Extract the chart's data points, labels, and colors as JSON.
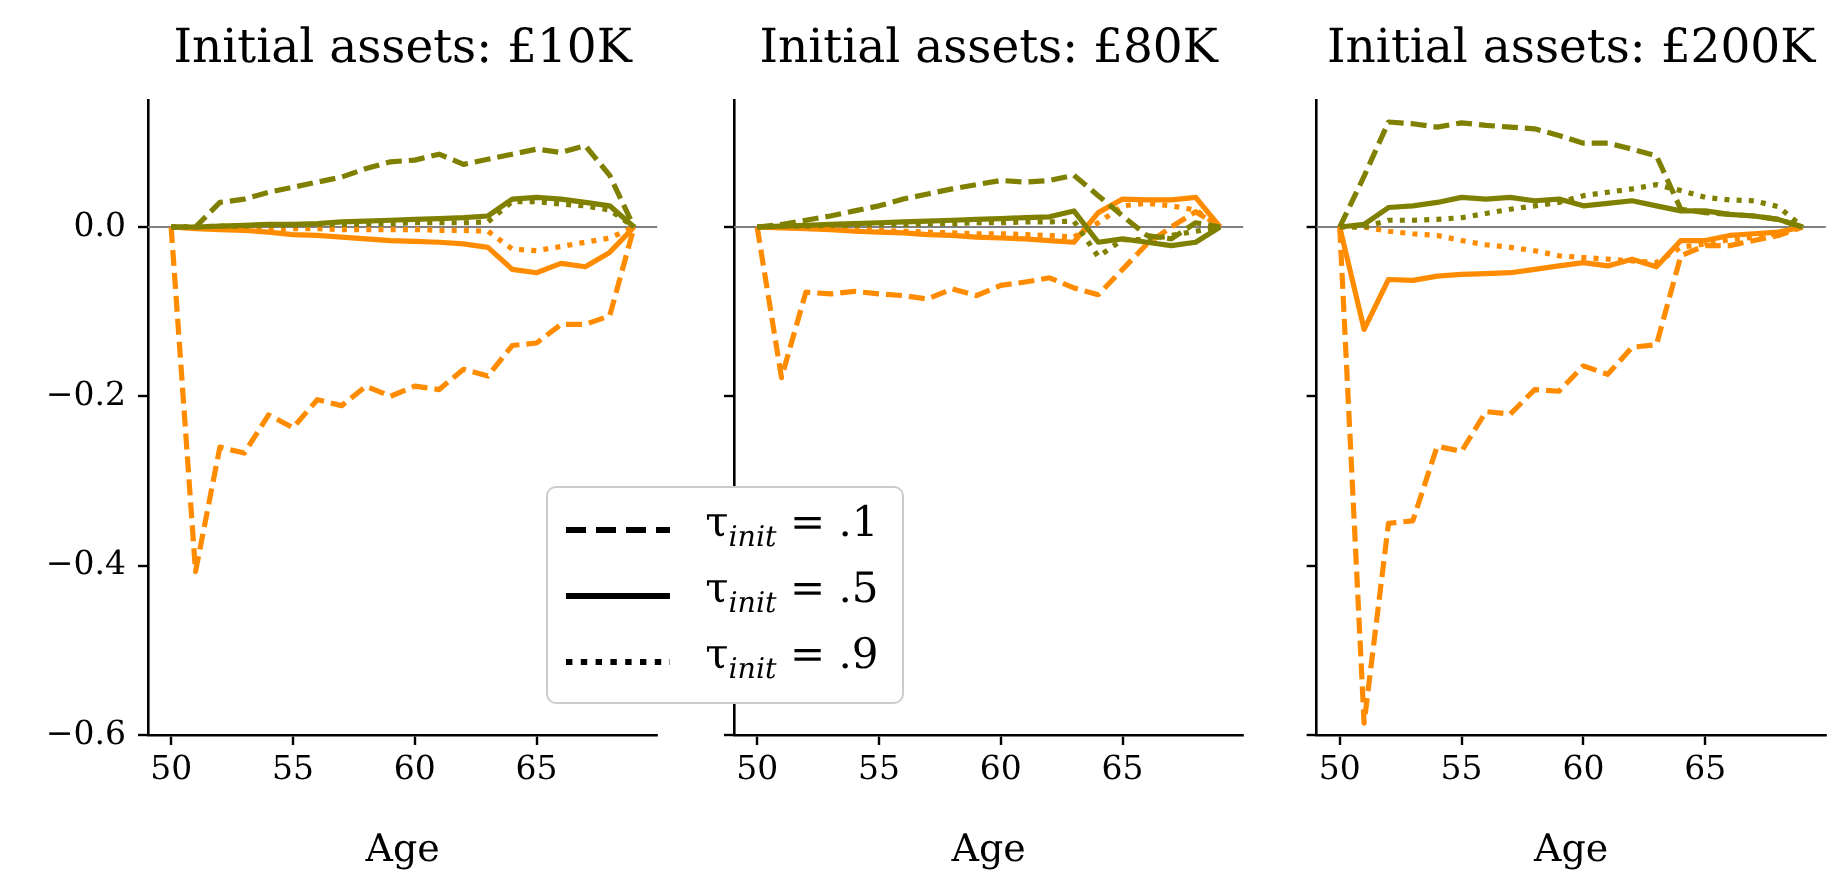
{
  "chart_data": [
    {
      "type": "line",
      "title": "Initial assets: £10K",
      "xlabel": "Age",
      "x": [
        50,
        51,
        52,
        53,
        54,
        55,
        56,
        57,
        58,
        59,
        60,
        61,
        62,
        63,
        64,
        65,
        66,
        67,
        68,
        69
      ],
      "xlim": [
        49.05,
        69.95
      ],
      "xticks": [
        50,
        55,
        60,
        65
      ],
      "ylim": [
        -0.6,
        0.15
      ],
      "yticks": [
        {
          "value": -0.6,
          "label": "−0.6"
        },
        {
          "value": -0.4,
          "label": "−0.4"
        },
        {
          "value": -0.2,
          "label": "−0.2"
        },
        {
          "value": 0,
          "label": "0.0"
        }
      ],
      "marker": "none",
      "ref_lines": [
        {
          "axis": "y",
          "value": 0,
          "color": "#808080"
        }
      ],
      "annotations": [
        "τ$_{init}$ = .1",
        "τ$_{init}$ = .5",
        "τ$_{init}$ = .9"
      ],
      "series": [
        {
          "color": "#ff8c00",
          "line_style": "dashed",
          "values": [
            0,
            -0.407,
            -0.26,
            -0.267,
            -0.222,
            -0.237,
            -0.204,
            -0.211,
            -0.188,
            -0.2,
            -0.188,
            -0.192,
            -0.168,
            -0.176,
            -0.14,
            -0.137,
            -0.115,
            -0.115,
            -0.105,
            0
          ]
        },
        {
          "color": "#ff8c00",
          "line_style": "solid",
          "values": [
            0,
            -0.002,
            -0.003,
            -0.004,
            -0.006,
            -0.009,
            -0.01,
            -0.012,
            -0.014,
            -0.016,
            -0.017,
            -0.018,
            -0.02,
            -0.024,
            -0.05,
            -0.054,
            -0.043,
            -0.047,
            -0.03,
            0
          ]
        },
        {
          "color": "#ff8c00",
          "line_style": "dotted",
          "values": [
            0,
            0,
            -0.001,
            -0.001,
            -0.002,
            -0.002,
            -0.002,
            -0.003,
            -0.003,
            -0.003,
            -0.003,
            -0.004,
            -0.004,
            -0.005,
            -0.026,
            -0.028,
            -0.023,
            -0.018,
            -0.013,
            0
          ]
        },
        {
          "color": "#808000",
          "line_style": "dashed",
          "values": [
            0,
            0,
            0.029,
            0.033,
            0.041,
            0.047,
            0.053,
            0.059,
            0.069,
            0.077,
            0.079,
            0.086,
            0.074,
            0.08,
            0.086,
            0.092,
            0.088,
            0.096,
            0.061,
            0
          ]
        },
        {
          "color": "#808000",
          "line_style": "solid",
          "values": [
            0,
            0,
            0.001,
            0.002,
            0.003,
            0.003,
            0.004,
            0.006,
            0.007,
            0.008,
            0.009,
            0.01,
            0.011,
            0.013,
            0.033,
            0.035,
            0.033,
            0.029,
            0.025,
            0
          ]
        },
        {
          "color": "#808000",
          "line_style": "dotted",
          "values": [
            0,
            0,
            0.001,
            0.001,
            0.002,
            0.002,
            0.003,
            0.003,
            0.004,
            0.004,
            0.005,
            0.005,
            0.005,
            0.006,
            0.03,
            0.03,
            0.027,
            0.025,
            0.02,
            0
          ]
        }
      ]
    },
    {
      "type": "line",
      "title": "Initial assets: £80K",
      "xlabel": "Age",
      "x": [
        50,
        51,
        52,
        53,
        54,
        55,
        56,
        57,
        58,
        59,
        60,
        61,
        62,
        63,
        64,
        65,
        66,
        67,
        68,
        69
      ],
      "xlim": [
        49.05,
        69.95
      ],
      "xticks": [
        50,
        55,
        60,
        65
      ],
      "ylim": [
        -0.6,
        0.15
      ],
      "yticks": [
        {
          "value": -0.6,
          "label": null
        },
        {
          "value": -0.4,
          "label": null
        },
        {
          "value": -0.2,
          "label": null
        },
        {
          "value": 0,
          "label": null
        }
      ],
      "tick_labels": "x",
      "marker": "none",
      "ref_lines": [
        {
          "axis": "y",
          "value": 0,
          "color": "#808080"
        }
      ],
      "series": [
        {
          "color": "#ff8c00",
          "line_style": "dashed",
          "values": [
            0,
            -0.178,
            -0.077,
            -0.079,
            -0.076,
            -0.079,
            -0.081,
            -0.085,
            -0.073,
            -0.081,
            -0.069,
            -0.065,
            -0.06,
            -0.072,
            -0.08,
            -0.05,
            -0.02,
            0,
            0.018,
            0
          ]
        },
        {
          "color": "#ff8c00",
          "line_style": "solid",
          "values": [
            0,
            -0.001,
            -0.002,
            -0.003,
            -0.005,
            -0.006,
            -0.007,
            -0.009,
            -0.01,
            -0.012,
            -0.013,
            -0.014,
            -0.016,
            -0.018,
            0.017,
            0.033,
            0.032,
            0.032,
            0.035,
            0
          ]
        },
        {
          "color": "#ff8c00",
          "line_style": "dotted",
          "values": [
            0,
            0,
            -0.001,
            -0.002,
            -0.003,
            -0.004,
            -0.005,
            -0.006,
            -0.007,
            -0.008,
            -0.008,
            -0.009,
            -0.01,
            -0.012,
            0.005,
            0.025,
            0.028,
            0.025,
            0.02,
            0
          ]
        },
        {
          "color": "#808000",
          "line_style": "dashed",
          "values": [
            0,
            0.003,
            0.008,
            0.013,
            0.019,
            0.025,
            0.033,
            0.039,
            0.045,
            0.05,
            0.055,
            0.053,
            0.055,
            0.061,
            0.037,
            0.013,
            -0.01,
            -0.014,
            0.005,
            0
          ]
        },
        {
          "color": "#808000",
          "line_style": "solid",
          "values": [
            0,
            0.001,
            0.002,
            0.003,
            0.004,
            0.005,
            0.006,
            0.007,
            0.008,
            0.009,
            0.01,
            0.011,
            0.012,
            0.019,
            -0.018,
            -0.014,
            -0.018,
            -0.022,
            -0.018,
            0
          ]
        },
        {
          "color": "#808000",
          "line_style": "dotted",
          "values": [
            0,
            0.001,
            0.001,
            0.002,
            0.002,
            0.003,
            0.003,
            0.004,
            0.004,
            0.005,
            0.005,
            0.006,
            0.006,
            0.007,
            -0.035,
            -0.015,
            -0.015,
            -0.01,
            -0.005,
            0
          ]
        }
      ]
    },
    {
      "type": "line",
      "title": "Initial assets: £200K",
      "xlabel": "Age",
      "x": [
        50,
        51,
        52,
        53,
        54,
        55,
        56,
        57,
        58,
        59,
        60,
        61,
        62,
        63,
        64,
        65,
        66,
        67,
        68,
        69
      ],
      "xlim": [
        49.05,
        69.95
      ],
      "xticks": [
        50,
        55,
        60,
        65
      ],
      "ylim": [
        -0.6,
        0.15
      ],
      "yticks": [
        {
          "value": -0.6,
          "label": null
        },
        {
          "value": -0.4,
          "label": null
        },
        {
          "value": -0.2,
          "label": null
        },
        {
          "value": 0,
          "label": null
        }
      ],
      "tick_labels": "x",
      "marker": "none",
      "ref_lines": [
        {
          "axis": "y",
          "value": 0,
          "color": "#808080"
        }
      ],
      "series": [
        {
          "color": "#ff8c00",
          "line_style": "dashed",
          "values": [
            0,
            -0.586,
            -0.35,
            -0.347,
            -0.259,
            -0.265,
            -0.218,
            -0.221,
            -0.192,
            -0.194,
            -0.164,
            -0.174,
            -0.142,
            -0.139,
            -0.034,
            -0.022,
            -0.022,
            -0.016,
            -0.01,
            0
          ]
        },
        {
          "color": "#ff8c00",
          "line_style": "solid",
          "values": [
            0,
            -0.121,
            -0.062,
            -0.063,
            -0.058,
            -0.056,
            -0.055,
            -0.054,
            -0.05,
            -0.046,
            -0.042,
            -0.046,
            -0.038,
            -0.047,
            -0.016,
            -0.016,
            -0.01,
            -0.008,
            -0.006,
            0
          ]
        },
        {
          "color": "#ff8c00",
          "line_style": "dotted",
          "values": [
            0,
            0,
            -0.005,
            -0.008,
            -0.01,
            -0.016,
            -0.021,
            -0.024,
            -0.028,
            -0.034,
            -0.036,
            -0.038,
            -0.04,
            -0.042,
            -0.024,
            -0.02,
            -0.015,
            -0.012,
            -0.008,
            0
          ]
        },
        {
          "color": "#808000",
          "line_style": "dashed",
          "values": [
            0,
            0.06,
            0.124,
            0.122,
            0.118,
            0.123,
            0.12,
            0.118,
            0.116,
            0.108,
            0.099,
            0.099,
            0.092,
            0.084,
            0.021,
            0.017,
            0.015,
            0.013,
            0.009,
            0
          ]
        },
        {
          "color": "#808000",
          "line_style": "solid",
          "values": [
            0,
            0.003,
            0.023,
            0.025,
            0.029,
            0.035,
            0.033,
            0.035,
            0.031,
            0.033,
            0.025,
            0.028,
            0.031,
            0.025,
            0.019,
            0.019,
            0.015,
            0.013,
            0.009,
            0
          ]
        },
        {
          "color": "#808000",
          "line_style": "dotted",
          "values": [
            0,
            0,
            0.008,
            0.008,
            0.009,
            0.011,
            0.016,
            0.021,
            0.025,
            0.029,
            0.037,
            0.041,
            0.045,
            0.05,
            0.043,
            0.035,
            0.032,
            0.031,
            0.024,
            0
          ]
        }
      ]
    }
  ]
}
